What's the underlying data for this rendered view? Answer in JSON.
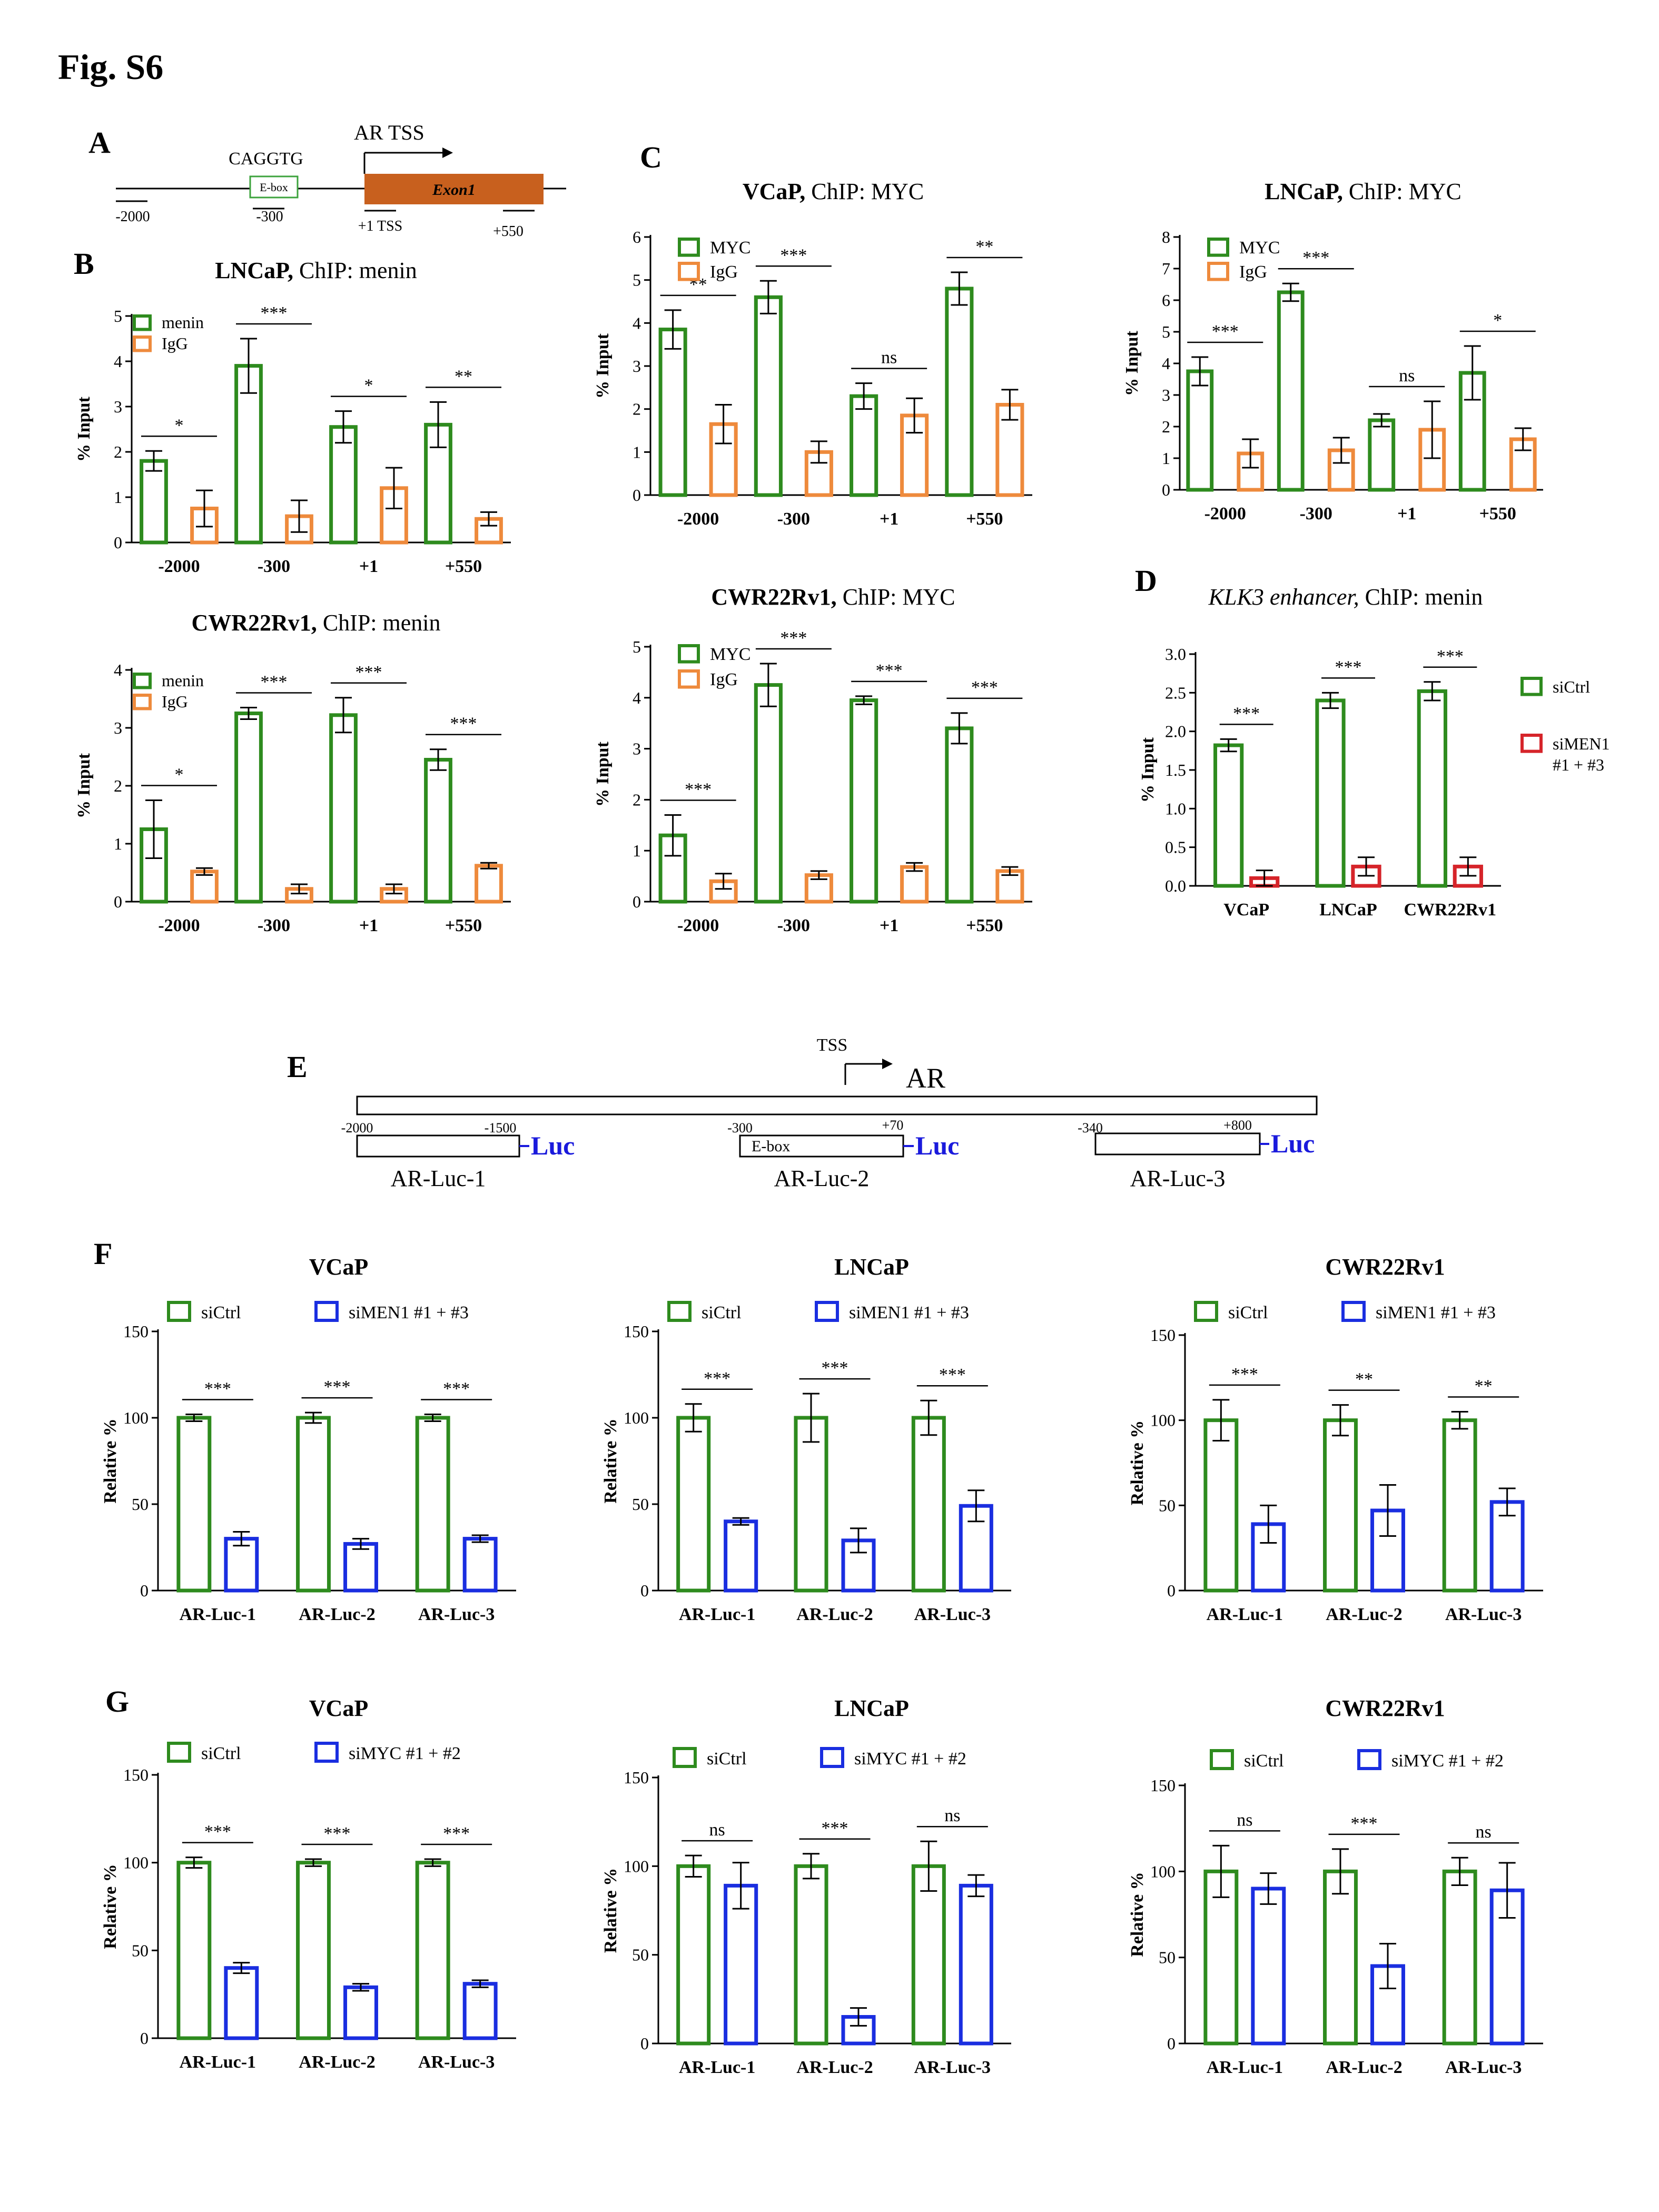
{
  "figure_title": "Fig. S6",
  "colors": {
    "green": "#2e8b1e",
    "orange": "#ee8a3c",
    "red": "#d6242a",
    "blue": "#1a2ee0",
    "exon": "#c8601e",
    "ebox_border": "#3da33d",
    "luc_text": "#1a1adc"
  },
  "panel_labels": {
    "A": "A",
    "B": "B",
    "C": "C",
    "D": "D",
    "E": "E",
    "F": "F",
    "G": "G"
  },
  "panelA": {
    "ebox_seq": "CAGGTG",
    "ebox_label": "E-box",
    "tss_label": "AR TSS",
    "exon_label": "Exon1",
    "tick_labels": [
      "-2000",
      "-300",
      "+1 TSS",
      "+550"
    ]
  },
  "panelE": {
    "tss_label": "TSS",
    "gene_label": "AR",
    "positions": [
      "-2000",
      "-1500",
      "-300",
      "+70",
      "-340",
      "+800"
    ],
    "ebox_label": "E-box",
    "luc_label": "Luc",
    "construct_names": [
      "AR-Luc-1",
      "AR-Luc-2",
      "AR-Luc-3"
    ]
  },
  "chart_data": [
    {
      "id": "B1",
      "type": "bar",
      "title_bold": "LNCaP,",
      "title_rest": " ChIP: menin",
      "ylabel": "% Input",
      "ylim": [
        0,
        5
      ],
      "yticks": [
        0,
        1,
        2,
        3,
        4,
        5
      ],
      "categories": [
        "-2000",
        "-300",
        "+1",
        "+550"
      ],
      "series": [
        {
          "name": "menin",
          "color": "green",
          "values": [
            1.8,
            3.9,
            2.55,
            2.6
          ],
          "errors": [
            0.22,
            0.6,
            0.35,
            0.5
          ]
        },
        {
          "name": "IgG",
          "color": "orange",
          "values": [
            0.75,
            0.58,
            1.2,
            0.52
          ],
          "errors": [
            0.4,
            0.35,
            0.45,
            0.15
          ]
        }
      ],
      "significance": [
        "*",
        "***",
        "*",
        "**"
      ]
    },
    {
      "id": "B2",
      "type": "bar",
      "title_bold": "CWR22Rv1,",
      "title_rest": " ChIP: menin",
      "ylabel": "% Input",
      "ylim": [
        0,
        4
      ],
      "yticks": [
        0,
        1,
        2,
        3,
        4
      ],
      "categories": [
        "-2000",
        "-300",
        "+1",
        "+550"
      ],
      "series": [
        {
          "name": "menin",
          "color": "green",
          "values": [
            1.25,
            3.25,
            3.22,
            2.45
          ],
          "errors": [
            0.5,
            0.1,
            0.3,
            0.18
          ]
        },
        {
          "name": "IgG",
          "color": "orange",
          "values": [
            0.52,
            0.22,
            0.22,
            0.62
          ],
          "errors": [
            0.06,
            0.08,
            0.08,
            0.05
          ]
        }
      ],
      "significance": [
        "*",
        "***",
        "***",
        "***"
      ]
    },
    {
      "id": "C1",
      "type": "bar",
      "title_bold": "VCaP,",
      "title_rest": " ChIP: MYC",
      "ylabel": "% Input",
      "ylim": [
        0,
        6
      ],
      "yticks": [
        0,
        1,
        2,
        3,
        4,
        5,
        6
      ],
      "categories": [
        "-2000",
        "-300",
        "+1",
        "+550"
      ],
      "series": [
        {
          "name": "MYC",
          "color": "green",
          "values": [
            3.85,
            4.6,
            2.3,
            4.8
          ],
          "errors": [
            0.45,
            0.38,
            0.3,
            0.38
          ]
        },
        {
          "name": "IgG",
          "color": "orange",
          "values": [
            1.65,
            1.0,
            1.85,
            2.1
          ],
          "errors": [
            0.45,
            0.25,
            0.4,
            0.35
          ]
        }
      ],
      "significance": [
        "**",
        "***",
        "ns",
        "**"
      ]
    },
    {
      "id": "C2",
      "type": "bar",
      "title_bold": "LNCaP,",
      "title_rest": " ChIP: MYC",
      "ylabel": "% Input",
      "ylim": [
        0,
        8
      ],
      "yticks": [
        0,
        1,
        2,
        3,
        4,
        5,
        6,
        7,
        8
      ],
      "categories": [
        "-2000",
        "-300",
        "+1",
        "+550"
      ],
      "series": [
        {
          "name": "MYC",
          "color": "green",
          "values": [
            3.75,
            6.25,
            2.2,
            3.7
          ],
          "errors": [
            0.45,
            0.28,
            0.2,
            0.85
          ]
        },
        {
          "name": "IgG",
          "color": "orange",
          "values": [
            1.15,
            1.25,
            1.9,
            1.6
          ],
          "errors": [
            0.45,
            0.4,
            0.9,
            0.35
          ]
        }
      ],
      "significance": [
        "***",
        "***",
        "ns",
        "*"
      ]
    },
    {
      "id": "C3",
      "type": "bar",
      "title_bold": "CWR22Rv1,",
      "title_rest": " ChIP: MYC",
      "ylabel": "% Input",
      "ylim": [
        0,
        5
      ],
      "yticks": [
        0,
        1,
        2,
        3,
        4,
        5
      ],
      "categories": [
        "-2000",
        "-300",
        "+1",
        "+550"
      ],
      "series": [
        {
          "name": "MYC",
          "color": "green",
          "values": [
            1.3,
            4.25,
            3.95,
            3.4
          ],
          "errors": [
            0.4,
            0.42,
            0.08,
            0.3
          ]
        },
        {
          "name": "IgG",
          "color": "orange",
          "values": [
            0.4,
            0.52,
            0.68,
            0.6
          ],
          "errors": [
            0.15,
            0.08,
            0.08,
            0.08
          ]
        }
      ],
      "significance": [
        "***",
        "***",
        "***",
        "***"
      ]
    },
    {
      "id": "D",
      "type": "bar",
      "title_italic": "KLK3 enhancer,",
      "title_rest": " ChIP: menin",
      "ylabel": "% Input",
      "ylim": [
        0,
        3.0
      ],
      "yticks": [
        0.0,
        0.5,
        1.0,
        1.5,
        2.0,
        2.5,
        3.0
      ],
      "tick_decimals": 1,
      "categories": [
        "VCaP",
        "LNCaP",
        "CWR22Rv1"
      ],
      "series": [
        {
          "name": "siCtrl",
          "color": "green",
          "values": [
            1.82,
            2.4,
            2.52
          ],
          "errors": [
            0.08,
            0.1,
            0.12
          ]
        },
        {
          "name": "siMEN1 #1 + #3",
          "name_lines": [
            "siMEN1",
            "#1 + #3"
          ],
          "color": "red",
          "values": [
            0.1,
            0.25,
            0.25
          ],
          "errors": [
            0.1,
            0.12,
            0.12
          ]
        }
      ],
      "significance": [
        "***",
        "***",
        "***"
      ]
    },
    {
      "id": "F1",
      "type": "bar",
      "title_bold": "VCaP",
      "ylabel": "Relative %",
      "ylim": [
        0,
        150
      ],
      "yticks": [
        0,
        50,
        100,
        150
      ],
      "categories": [
        "AR-Luc-1",
        "AR-Luc-2",
        "AR-Luc-3"
      ],
      "series": [
        {
          "name": "siCtrl",
          "color": "green",
          "values": [
            100,
            100,
            100
          ],
          "errors": [
            2,
            3,
            2
          ]
        },
        {
          "name": "siMEN1 #1 + #3",
          "color": "blue",
          "values": [
            30,
            27,
            30
          ],
          "errors": [
            4,
            3,
            2
          ]
        }
      ],
      "significance": [
        "***",
        "***",
        "***"
      ]
    },
    {
      "id": "F2",
      "type": "bar",
      "title_bold": "LNCaP",
      "ylabel": "Relative  %",
      "ylim": [
        0,
        150
      ],
      "yticks": [
        0,
        50,
        100,
        150
      ],
      "categories": [
        "AR-Luc-1",
        "AR-Luc-2",
        "AR-Luc-3"
      ],
      "series": [
        {
          "name": "siCtrl",
          "color": "green",
          "values": [
            100,
            100,
            100
          ],
          "errors": [
            8,
            14,
            10
          ]
        },
        {
          "name": "siMEN1 #1 + #3",
          "color": "blue",
          "values": [
            40,
            29,
            49
          ],
          "errors": [
            2,
            7,
            9
          ]
        }
      ],
      "significance": [
        "***",
        "***",
        "***"
      ]
    },
    {
      "id": "F3",
      "type": "bar",
      "title_bold": "CWR22Rv1",
      "ylabel": "Relative  %",
      "ylim": [
        0,
        150
      ],
      "yticks": [
        0,
        50,
        100,
        150
      ],
      "categories": [
        "AR-Luc-1",
        "AR-Luc-2",
        "AR-Luc-3"
      ],
      "series": [
        {
          "name": "siCtrl",
          "color": "green",
          "values": [
            100,
            100,
            100
          ],
          "errors": [
            12,
            9,
            5
          ]
        },
        {
          "name": "siMEN1 #1 + #3",
          "color": "blue",
          "values": [
            39,
            47,
            52
          ],
          "errors": [
            11,
            15,
            8
          ]
        }
      ],
      "significance": [
        "***",
        "**",
        "**"
      ]
    },
    {
      "id": "G1",
      "type": "bar",
      "title_bold": "VCaP",
      "ylabel": "Relative %",
      "ylim": [
        0,
        150
      ],
      "yticks": [
        0,
        50,
        100,
        150
      ],
      "categories": [
        "AR-Luc-1",
        "AR-Luc-2",
        "AR-Luc-3"
      ],
      "series": [
        {
          "name": "siCtrl",
          "color": "green",
          "values": [
            100,
            100,
            100
          ],
          "errors": [
            3,
            2,
            2
          ]
        },
        {
          "name": "siMYC #1 + #2",
          "color": "blue",
          "values": [
            40,
            29,
            31
          ],
          "errors": [
            3,
            2,
            2
          ]
        }
      ],
      "significance": [
        "***",
        "***",
        "***"
      ]
    },
    {
      "id": "G2",
      "type": "bar",
      "title_bold": "LNCaP",
      "ylabel": "Relative  %",
      "ylim": [
        0,
        150
      ],
      "yticks": [
        0,
        50,
        100,
        150
      ],
      "categories": [
        "AR-Luc-1",
        "AR-Luc-2",
        "AR-Luc-3"
      ],
      "series": [
        {
          "name": "siCtrl",
          "color": "green",
          "values": [
            100,
            100,
            100
          ],
          "errors": [
            6,
            7,
            14
          ]
        },
        {
          "name": "siMYC #1 + #2",
          "color": "blue",
          "values": [
            89,
            15,
            89
          ],
          "errors": [
            13,
            5,
            6
          ]
        }
      ],
      "significance": [
        "ns",
        "***",
        "ns"
      ]
    },
    {
      "id": "G3",
      "type": "bar",
      "title_bold": "CWR22Rv1",
      "ylabel": "Relative  %",
      "ylim": [
        0,
        150
      ],
      "yticks": [
        0,
        50,
        100,
        150
      ],
      "categories": [
        "AR-Luc-1",
        "AR-Luc-2",
        "AR-Luc-3"
      ],
      "series": [
        {
          "name": "siCtrl",
          "color": "green",
          "values": [
            100,
            100,
            100
          ],
          "errors": [
            15,
            13,
            8
          ]
        },
        {
          "name": "siMYC #1 + #2",
          "color": "blue",
          "values": [
            90,
            45,
            89
          ],
          "errors": [
            9,
            13,
            16
          ]
        }
      ],
      "significance": [
        "ns",
        "***",
        "ns"
      ]
    }
  ]
}
